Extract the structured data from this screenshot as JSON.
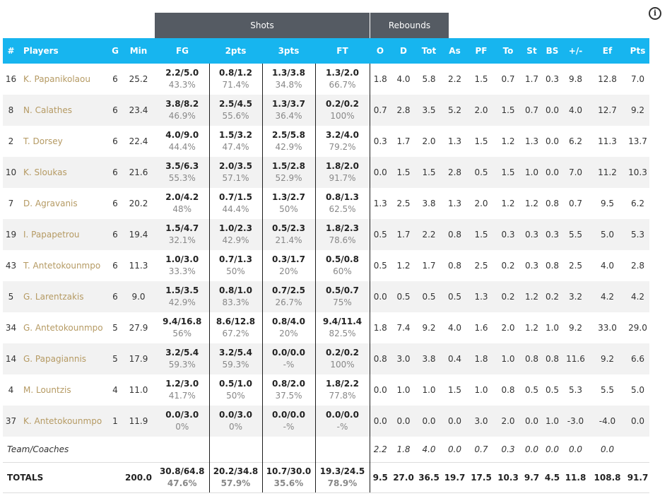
{
  "info_icon": "i",
  "groups": {
    "shots": "Shots",
    "rebounds": "Rebounds"
  },
  "columns": [
    "#",
    "Players",
    "G",
    "Min",
    "FG",
    "2pts",
    "3pts",
    "FT",
    "O",
    "D",
    "Tot",
    "As",
    "PF",
    "To",
    "St",
    "BS",
    "+/-",
    "Ef",
    "Pts"
  ],
  "players": [
    {
      "num": "16",
      "name": "K. Papanikolaou",
      "g": "6",
      "min": "25.2",
      "fg": "2.2/5.0",
      "fg_pct": "43.3%",
      "p2": "0.8/1.2",
      "p2_pct": "71.4%",
      "p3": "1.3/3.8",
      "p3_pct": "34.8%",
      "ft": "1.3/2.0",
      "ft_pct": "66.7%",
      "o": "1.8",
      "d": "4.0",
      "tot": "5.8",
      "as": "2.2",
      "pf": "1.5",
      "to": "0.7",
      "st": "1.7",
      "bs": "0.3",
      "pm": "9.8",
      "ef": "12.8",
      "pts": "7.0"
    },
    {
      "num": "8",
      "name": "N. Calathes",
      "g": "6",
      "min": "23.4",
      "fg": "3.8/8.2",
      "fg_pct": "46.9%",
      "p2": "2.5/4.5",
      "p2_pct": "55.6%",
      "p3": "1.3/3.7",
      "p3_pct": "36.4%",
      "ft": "0.2/0.2",
      "ft_pct": "100%",
      "o": "0.7",
      "d": "2.8",
      "tot": "3.5",
      "as": "5.2",
      "pf": "2.0",
      "to": "1.5",
      "st": "0.7",
      "bs": "0.0",
      "pm": "4.0",
      "ef": "12.7",
      "pts": "9.2"
    },
    {
      "num": "2",
      "name": "T. Dorsey",
      "g": "6",
      "min": "22.4",
      "fg": "4.0/9.0",
      "fg_pct": "44.4%",
      "p2": "1.5/3.2",
      "p2_pct": "47.4%",
      "p3": "2.5/5.8",
      "p3_pct": "42.9%",
      "ft": "3.2/4.0",
      "ft_pct": "79.2%",
      "o": "0.3",
      "d": "1.7",
      "tot": "2.0",
      "as": "1.3",
      "pf": "1.5",
      "to": "1.2",
      "st": "1.3",
      "bs": "0.0",
      "pm": "6.2",
      "ef": "11.3",
      "pts": "13.7"
    },
    {
      "num": "10",
      "name": "K. Sloukas",
      "g": "6",
      "min": "21.6",
      "fg": "3.5/6.3",
      "fg_pct": "55.3%",
      "p2": "2.0/3.5",
      "p2_pct": "57.1%",
      "p3": "1.5/2.8",
      "p3_pct": "52.9%",
      "ft": "1.8/2.0",
      "ft_pct": "91.7%",
      "o": "0.0",
      "d": "1.5",
      "tot": "1.5",
      "as": "2.8",
      "pf": "0.5",
      "to": "1.5",
      "st": "1.0",
      "bs": "0.0",
      "pm": "7.0",
      "ef": "11.2",
      "pts": "10.3"
    },
    {
      "num": "7",
      "name": "D. Agravanis",
      "g": "6",
      "min": "20.2",
      "fg": "2.0/4.2",
      "fg_pct": "48%",
      "p2": "0.7/1.5",
      "p2_pct": "44.4%",
      "p3": "1.3/2.7",
      "p3_pct": "50%",
      "ft": "0.8/1.3",
      "ft_pct": "62.5%",
      "o": "1.3",
      "d": "2.5",
      "tot": "3.8",
      "as": "1.3",
      "pf": "2.0",
      "to": "1.2",
      "st": "1.2",
      "bs": "0.8",
      "pm": "0.7",
      "ef": "9.5",
      "pts": "6.2"
    },
    {
      "num": "19",
      "name": "I. Papapetrou",
      "g": "6",
      "min": "19.4",
      "fg": "1.5/4.7",
      "fg_pct": "32.1%",
      "p2": "1.0/2.3",
      "p2_pct": "42.9%",
      "p3": "0.5/2.3",
      "p3_pct": "21.4%",
      "ft": "1.8/2.3",
      "ft_pct": "78.6%",
      "o": "0.5",
      "d": "1.7",
      "tot": "2.2",
      "as": "0.8",
      "pf": "1.5",
      "to": "0.3",
      "st": "0.3",
      "bs": "0.3",
      "pm": "5.5",
      "ef": "5.0",
      "pts": "5.3"
    },
    {
      "num": "43",
      "name": "T. Antetokounmpo",
      "g": "6",
      "min": "11.3",
      "fg": "1.0/3.0",
      "fg_pct": "33.3%",
      "p2": "0.7/1.3",
      "p2_pct": "50%",
      "p3": "0.3/1.7",
      "p3_pct": "20%",
      "ft": "0.5/0.8",
      "ft_pct": "60%",
      "o": "0.5",
      "d": "1.2",
      "tot": "1.7",
      "as": "0.8",
      "pf": "2.5",
      "to": "0.2",
      "st": "0.3",
      "bs": "0.8",
      "pm": "2.5",
      "ef": "4.0",
      "pts": "2.8"
    },
    {
      "num": "5",
      "name": "G. Larentzakis",
      "g": "6",
      "min": "9.0",
      "fg": "1.5/3.5",
      "fg_pct": "42.9%",
      "p2": "0.8/1.0",
      "p2_pct": "83.3%",
      "p3": "0.7/2.5",
      "p3_pct": "26.7%",
      "ft": "0.5/0.7",
      "ft_pct": "75%",
      "o": "0.0",
      "d": "0.5",
      "tot": "0.5",
      "as": "0.5",
      "pf": "1.3",
      "to": "0.2",
      "st": "1.2",
      "bs": "0.2",
      "pm": "3.2",
      "ef": "4.2",
      "pts": "4.2"
    },
    {
      "num": "34",
      "name": "G. Antetokounmpo",
      "g": "5",
      "min": "27.9",
      "fg": "9.4/16.8",
      "fg_pct": "56%",
      "p2": "8.6/12.8",
      "p2_pct": "67.2%",
      "p3": "0.8/4.0",
      "p3_pct": "20%",
      "ft": "9.4/11.4",
      "ft_pct": "82.5%",
      "o": "1.8",
      "d": "7.4",
      "tot": "9.2",
      "as": "4.0",
      "pf": "1.6",
      "to": "2.0",
      "st": "1.2",
      "bs": "1.0",
      "pm": "9.2",
      "ef": "33.0",
      "pts": "29.0"
    },
    {
      "num": "14",
      "name": "G. Papagiannis",
      "g": "5",
      "min": "17.9",
      "fg": "3.2/5.4",
      "fg_pct": "59.3%",
      "p2": "3.2/5.4",
      "p2_pct": "59.3%",
      "p3": "0.0/0.0",
      "p3_pct": "-%",
      "ft": "0.2/0.2",
      "ft_pct": "100%",
      "o": "0.8",
      "d": "3.0",
      "tot": "3.8",
      "as": "0.4",
      "pf": "1.8",
      "to": "1.0",
      "st": "0.8",
      "bs": "0.8",
      "pm": "11.6",
      "ef": "9.2",
      "pts": "6.6"
    },
    {
      "num": "4",
      "name": "M. Lountzis",
      "g": "4",
      "min": "11.0",
      "fg": "1.2/3.0",
      "fg_pct": "41.7%",
      "p2": "0.5/1.0",
      "p2_pct": "50%",
      "p3": "0.8/2.0",
      "p3_pct": "37.5%",
      "ft": "1.8/2.2",
      "ft_pct": "77.8%",
      "o": "0.0",
      "d": "1.0",
      "tot": "1.0",
      "as": "1.5",
      "pf": "1.0",
      "to": "0.8",
      "st": "0.5",
      "bs": "0.5",
      "pm": "5.3",
      "ef": "5.5",
      "pts": "5.0"
    },
    {
      "num": "37",
      "name": "K. Antetokounmpo",
      "g": "1",
      "min": "11.9",
      "fg": "0.0/3.0",
      "fg_pct": "0%",
      "p2": "0.0/3.0",
      "p2_pct": "0%",
      "p3": "0.0/0.0",
      "p3_pct": "-%",
      "ft": "0.0/0.0",
      "ft_pct": "-%",
      "o": "0.0",
      "d": "0.0",
      "tot": "0.0",
      "as": "0.0",
      "pf": "3.0",
      "to": "2.0",
      "st": "0.0",
      "bs": "1.0",
      "pm": "-3.0",
      "ef": "-4.0",
      "pts": "0.0"
    }
  ],
  "team": {
    "label": "Team/Coaches",
    "o": "2.2",
    "d": "1.8",
    "tot": "4.0",
    "as": "0.0",
    "pf": "0.7",
    "to": "0.3",
    "st": "0.0",
    "bs": "0.0",
    "pm": "0.0",
    "ef": "0.0",
    "pts": ""
  },
  "totals": {
    "label": "TOTALS",
    "min": "200.0",
    "fg": "30.8/64.8",
    "fg_pct": "47.6%",
    "p2": "20.2/34.8",
    "p2_pct": "57.9%",
    "p3": "10.7/30.0",
    "p3_pct": "35.6%",
    "ft": "19.3/24.5",
    "ft_pct": "78.9%",
    "o": "9.5",
    "d": "27.0",
    "tot": "36.5",
    "as": "19.7",
    "pf": "17.5",
    "to": "10.3",
    "st": "9.7",
    "bs": "4.5",
    "pm": "11.8",
    "ef": "108.8",
    "pts": "91.7"
  }
}
